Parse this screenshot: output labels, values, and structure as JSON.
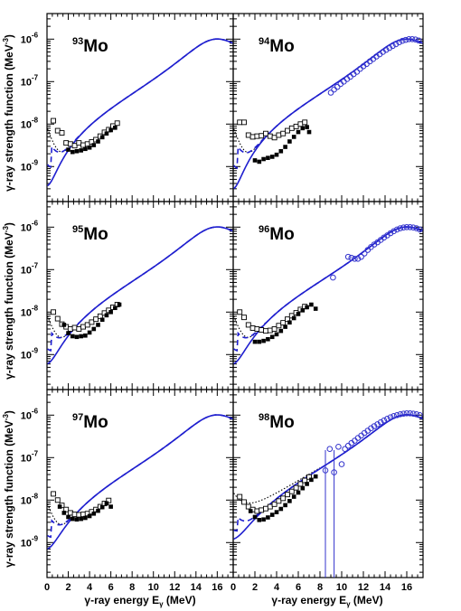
{
  "chart_data": {
    "type": "scatter",
    "layout": "3x2 grid of log-scale panels",
    "xlabel": "γ-ray energy E",
    "xlabel_sub": "γ",
    "xlabel_unit": "(MeV)",
    "ylabel": "γ-ray strength function (MeV",
    "ylabel_sup": "-3",
    "ylabel_close": ")",
    "xlim": [
      0,
      17.5
    ],
    "ylim": [
      1.5e-10,
      4e-06
    ],
    "yscale": "log",
    "x_ticks": [
      0,
      2,
      4,
      6,
      8,
      10,
      12,
      14,
      16
    ],
    "x_tick_labels_left": [
      "0",
      "2",
      "4",
      "6",
      "8",
      "10",
      "12",
      "14",
      "16"
    ],
    "x_tick_labels_right": [
      "0",
      "2",
      "4",
      "6",
      "8",
      "10",
      "12",
      "14",
      "16"
    ],
    "y_ticks": [
      1e-09,
      1e-08,
      1e-07,
      1e-06
    ],
    "y_tick_labels": [
      {
        "base": "10",
        "exp": "-9"
      },
      {
        "base": "10",
        "exp": "-8"
      },
      {
        "base": "10",
        "exp": "-7"
      },
      {
        "base": "10",
        "exp": "-6"
      }
    ],
    "colors": {
      "theory": "#1f1fcf",
      "gdr_data": "#3333cc",
      "data": "#000000"
    },
    "panels": [
      {
        "mass": "93",
        "element": "Mo",
        "filled": [
          [
            2.0,
            2.5e-09
          ],
          [
            2.4,
            2.2e-09
          ],
          [
            2.8,
            2.3e-09
          ],
          [
            3.2,
            2.4e-09
          ],
          [
            3.6,
            2.6e-09
          ],
          [
            4.0,
            2.8e-09
          ],
          [
            4.4,
            3.2e-09
          ],
          [
            4.8,
            3.9e-09
          ],
          [
            5.2,
            4.9e-09
          ],
          [
            5.6,
            6e-09
          ],
          [
            6.0,
            7.2e-09
          ],
          [
            6.4,
            8.2e-09
          ]
        ],
        "open_squares": [
          [
            0.6,
            1.2e-08
          ],
          [
            1.0,
            7e-09
          ],
          [
            1.4,
            6.2e-09
          ],
          [
            1.8,
            3.6e-09
          ],
          [
            2.2,
            3.4e-09
          ],
          [
            2.6,
            3.1e-09
          ],
          [
            3.0,
            3.6e-09
          ],
          [
            3.4,
            3.2e-09
          ],
          [
            3.8,
            3.4e-09
          ],
          [
            4.2,
            3.8e-09
          ],
          [
            4.6,
            4.3e-09
          ],
          [
            5.0,
            5.2e-09
          ],
          [
            5.4,
            6.4e-09
          ],
          [
            5.8,
            7.4e-09
          ],
          [
            6.2,
            9e-09
          ],
          [
            6.6,
            1.05e-08
          ]
        ],
        "open_circles": [],
        "low_e_curve": "dotted"
      },
      {
        "mass": "94",
        "element": "Mo",
        "filled": [
          [
            2.0,
            1.4e-09
          ],
          [
            2.4,
            1.3e-09
          ],
          [
            2.8,
            1.5e-09
          ],
          [
            3.2,
            1.6e-09
          ],
          [
            3.6,
            1.7e-09
          ],
          [
            4.0,
            1.9e-09
          ],
          [
            4.4,
            2.3e-09
          ],
          [
            4.8,
            2.9e-09
          ],
          [
            5.2,
            3.9e-09
          ],
          [
            5.6,
            5e-09
          ],
          [
            6.0,
            6.5e-09
          ],
          [
            6.4,
            8e-09
          ],
          [
            6.8,
            8.5e-09
          ],
          [
            7.0,
            6.5e-09
          ]
        ],
        "open_squares": [
          [
            0.6,
            1.1e-08
          ],
          [
            1.0,
            1.1e-08
          ],
          [
            1.4,
            5.5e-09
          ],
          [
            1.8,
            5e-09
          ],
          [
            2.2,
            5.2e-09
          ],
          [
            2.6,
            5.3e-09
          ],
          [
            3.0,
            6e-09
          ],
          [
            3.4,
            5.2e-09
          ],
          [
            3.8,
            4.8e-09
          ],
          [
            4.2,
            5.5e-09
          ],
          [
            4.6,
            6e-09
          ],
          [
            5.0,
            7e-09
          ],
          [
            5.4,
            8e-09
          ],
          [
            5.8,
            8.8e-09
          ],
          [
            6.2,
            1e-08
          ],
          [
            6.6,
            1.1e-08
          ]
        ],
        "open_circles": [
          [
            9.0,
            5.5e-08
          ],
          [
            9.3,
            6.5e-08
          ],
          [
            9.6,
            7.5e-08
          ],
          [
            9.9,
            8.8e-08
          ],
          [
            10.2,
            1e-07
          ],
          [
            10.5,
            1.15e-07
          ],
          [
            10.8,
            1.3e-07
          ],
          [
            11.1,
            1.5e-07
          ],
          [
            11.4,
            1.7e-07
          ],
          [
            11.7,
            2e-07
          ],
          [
            12.0,
            2.3e-07
          ],
          [
            12.3,
            2.6e-07
          ],
          [
            12.6,
            3e-07
          ],
          [
            12.9,
            3.4e-07
          ],
          [
            13.2,
            3.9e-07
          ],
          [
            13.5,
            4.4e-07
          ],
          [
            13.8,
            5e-07
          ],
          [
            14.1,
            5.6e-07
          ],
          [
            14.4,
            6.2e-07
          ],
          [
            14.7,
            6.9e-07
          ],
          [
            15.0,
            7.6e-07
          ],
          [
            15.3,
            8.4e-07
          ],
          [
            15.6,
            9.1e-07
          ],
          [
            15.9,
            9.6e-07
          ],
          [
            16.2,
            1e-06
          ],
          [
            16.5,
            1e-06
          ],
          [
            16.8,
            9.8e-07
          ],
          [
            17.1,
            9.3e-07
          ]
        ],
        "low_e_curve": "dotted"
      },
      {
        "mass": "95",
        "element": "Mo",
        "filled": [
          [
            1.6,
            5e-09
          ],
          [
            2.0,
            3.2e-09
          ],
          [
            2.4,
            2.7e-09
          ],
          [
            2.8,
            2.6e-09
          ],
          [
            3.2,
            2.7e-09
          ],
          [
            3.6,
            2.8e-09
          ],
          [
            4.0,
            3.3e-09
          ],
          [
            4.4,
            4e-09
          ],
          [
            4.8,
            5e-09
          ],
          [
            5.2,
            6.6e-09
          ],
          [
            5.6,
            8.4e-09
          ],
          [
            6.0,
            1e-08
          ],
          [
            6.4,
            1.25e-08
          ],
          [
            6.8,
            1.5e-08
          ]
        ],
        "open_squares": [
          [
            0.6,
            1e-08
          ],
          [
            1.0,
            7e-09
          ],
          [
            1.4,
            5.2e-09
          ],
          [
            1.8,
            4.5e-09
          ],
          [
            2.2,
            4e-09
          ],
          [
            2.6,
            4.3e-09
          ],
          [
            3.0,
            4e-09
          ],
          [
            3.4,
            4.5e-09
          ],
          [
            3.8,
            5e-09
          ],
          [
            4.2,
            5.8e-09
          ],
          [
            4.6,
            6.8e-09
          ],
          [
            5.0,
            8e-09
          ],
          [
            5.4,
            9.5e-09
          ],
          [
            5.8,
            1.1e-08
          ],
          [
            6.2,
            1.3e-08
          ],
          [
            6.6,
            1.5e-08
          ]
        ],
        "open_circles": [],
        "low_e_curve": "dotted"
      },
      {
        "mass": "96",
        "element": "Mo",
        "filled": [
          [
            2.0,
            2e-09
          ],
          [
            2.4,
            2e-09
          ],
          [
            2.8,
            2.1e-09
          ],
          [
            3.2,
            2.3e-09
          ],
          [
            3.6,
            2.6e-09
          ],
          [
            4.0,
            3e-09
          ],
          [
            4.4,
            3.6e-09
          ],
          [
            4.8,
            4.5e-09
          ],
          [
            5.2,
            5.7e-09
          ],
          [
            5.6,
            7.2e-09
          ],
          [
            6.0,
            9e-09
          ],
          [
            6.4,
            1.1e-08
          ],
          [
            6.8,
            1.3e-08
          ],
          [
            7.2,
            1.5e-08
          ],
          [
            7.6,
            1.2e-08
          ]
        ],
        "open_squares": [
          [
            0.6,
            1e-08
          ],
          [
            1.0,
            7.5e-09
          ],
          [
            1.4,
            5e-09
          ],
          [
            1.8,
            4.2e-09
          ],
          [
            2.2,
            4e-09
          ],
          [
            2.6,
            3.8e-09
          ],
          [
            3.0,
            3.6e-09
          ],
          [
            3.4,
            3.7e-09
          ],
          [
            3.8,
            4e-09
          ],
          [
            4.2,
            4.8e-09
          ],
          [
            4.6,
            5.6e-09
          ],
          [
            5.0,
            6.8e-09
          ],
          [
            5.4,
            8.2e-09
          ],
          [
            5.8,
            9.6e-09
          ],
          [
            6.2,
            1.15e-08
          ],
          [
            6.6,
            1.35e-08
          ]
        ],
        "open_circles": [
          [
            9.2,
            6.5e-08
          ],
          [
            10.6,
            2e-07
          ],
          [
            10.9,
            1.9e-07
          ],
          [
            11.2,
            1.8e-07
          ],
          [
            11.5,
            1.8e-07
          ],
          [
            11.8,
            2e-07
          ],
          [
            12.1,
            2.4e-07
          ],
          [
            12.4,
            2.9e-07
          ],
          [
            12.7,
            3.4e-07
          ],
          [
            13.0,
            3.9e-07
          ],
          [
            13.3,
            4.4e-07
          ],
          [
            13.6,
            5e-07
          ],
          [
            13.9,
            5.7e-07
          ],
          [
            14.2,
            6.4e-07
          ],
          [
            14.5,
            7.2e-07
          ],
          [
            14.8,
            8e-07
          ],
          [
            15.1,
            8.8e-07
          ],
          [
            15.4,
            9.4e-07
          ],
          [
            15.7,
            9.8e-07
          ],
          [
            16.0,
            1e-06
          ],
          [
            16.3,
            1e-06
          ],
          [
            16.6,
            9.8e-07
          ],
          [
            16.9,
            9.4e-07
          ],
          [
            17.2,
            8.8e-07
          ]
        ],
        "low_e_curve": "dotted"
      },
      {
        "mass": "97",
        "element": "Mo",
        "filled": [
          [
            1.2,
            7e-09
          ],
          [
            1.6,
            5e-09
          ],
          [
            2.0,
            4e-09
          ],
          [
            2.4,
            3.6e-09
          ],
          [
            2.8,
            3.5e-09
          ],
          [
            3.2,
            3.6e-09
          ],
          [
            3.6,
            3.8e-09
          ],
          [
            4.0,
            4.2e-09
          ],
          [
            4.4,
            4.8e-09
          ],
          [
            4.8,
            5.6e-09
          ],
          [
            5.2,
            6.8e-09
          ],
          [
            5.6,
            8.4e-09
          ],
          [
            6.0,
            7e-09
          ]
        ],
        "open_squares": [
          [
            0.6,
            1.4e-08
          ],
          [
            1.0,
            1e-08
          ],
          [
            1.4,
            7.5e-09
          ],
          [
            1.8,
            6e-09
          ],
          [
            2.2,
            5e-09
          ],
          [
            2.6,
            4.6e-09
          ],
          [
            3.0,
            4.5e-09
          ],
          [
            3.4,
            4.6e-09
          ],
          [
            3.8,
            4.8e-09
          ],
          [
            4.2,
            5.3e-09
          ],
          [
            4.6,
            6e-09
          ],
          [
            5.0,
            7e-09
          ],
          [
            5.4,
            8.3e-09
          ],
          [
            5.8,
            9.8e-09
          ]
        ],
        "open_circles": [],
        "low_e_curve": "dotted"
      },
      {
        "mass": "98",
        "element": "Mo",
        "filled": [
          [
            1.6,
            5.5e-09
          ],
          [
            2.0,
            4e-09
          ],
          [
            2.4,
            3.4e-09
          ],
          [
            2.8,
            3.5e-09
          ],
          [
            3.2,
            3.9e-09
          ],
          [
            3.6,
            4.5e-09
          ],
          [
            4.0,
            5.2e-09
          ],
          [
            4.4,
            6.2e-09
          ],
          [
            4.8,
            7.6e-09
          ],
          [
            5.2,
            9.5e-09
          ],
          [
            5.6,
            1.2e-08
          ],
          [
            6.0,
            1.5e-08
          ],
          [
            6.4,
            1.9e-08
          ],
          [
            6.8,
            2.4e-08
          ],
          [
            7.2,
            3e-08
          ],
          [
            7.6,
            3.6e-08
          ]
        ],
        "open_squares": [
          [
            0.6,
            1.2e-08
          ],
          [
            1.0,
            9e-09
          ],
          [
            1.4,
            7e-09
          ],
          [
            1.8,
            6e-09
          ],
          [
            2.2,
            5.5e-09
          ],
          [
            2.6,
            5.8e-09
          ],
          [
            3.0,
            6.3e-09
          ],
          [
            3.4,
            7e-09
          ],
          [
            3.8,
            8e-09
          ],
          [
            4.2,
            9.5e-09
          ],
          [
            4.6,
            1.1e-08
          ],
          [
            5.0,
            1.35e-08
          ],
          [
            5.4,
            1.6e-08
          ],
          [
            5.8,
            1.95e-08
          ],
          [
            6.2,
            2.4e-08
          ],
          [
            6.6,
            2.9e-08
          ],
          [
            7.0,
            3.5e-08
          ]
        ],
        "open_circles": [
          [
            8.5,
            5e-08
          ],
          [
            8.9,
            1.6e-07
          ],
          [
            9.3,
            4.5e-08
          ],
          [
            9.7,
            1.8e-07
          ],
          [
            10.0,
            7e-08
          ],
          [
            10.3,
            1.6e-07
          ],
          [
            10.6,
            1.9e-07
          ],
          [
            10.9,
            2.2e-07
          ],
          [
            11.2,
            2.5e-07
          ],
          [
            11.5,
            2.9e-07
          ],
          [
            11.8,
            3.3e-07
          ],
          [
            12.1,
            3.8e-07
          ],
          [
            12.4,
            4.3e-07
          ],
          [
            12.7,
            4.9e-07
          ],
          [
            13.0,
            5.5e-07
          ],
          [
            13.3,
            6.1e-07
          ],
          [
            13.6,
            6.8e-07
          ],
          [
            13.9,
            7.5e-07
          ],
          [
            14.2,
            8.2e-07
          ],
          [
            14.5,
            8.9e-07
          ],
          [
            14.8,
            9.5e-07
          ],
          [
            15.1,
            1e-06
          ],
          [
            15.4,
            1.05e-06
          ],
          [
            15.7,
            1.08e-06
          ],
          [
            16.0,
            1.1e-06
          ],
          [
            16.3,
            1.1e-06
          ],
          [
            16.6,
            1.08e-06
          ],
          [
            16.9,
            1.05e-06
          ],
          [
            17.2,
            1e-06
          ]
        ],
        "low_e_curve": "dotted"
      }
    ]
  }
}
